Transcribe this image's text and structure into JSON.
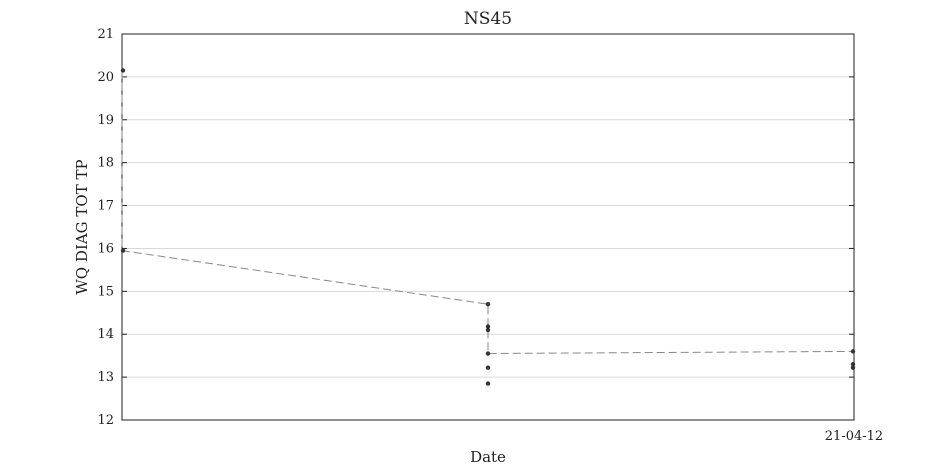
{
  "chart_data": {
    "type": "scatter",
    "title": "NS45",
    "xlabel": "Date",
    "ylabel": "WQ DIAG TOT TP",
    "ylim": [
      12,
      21
    ],
    "yticks": [
      12,
      13,
      14,
      15,
      16,
      17,
      18,
      19,
      20,
      21
    ],
    "x_tick_labels": [
      {
        "label": "21-04-12",
        "x": 2.0
      }
    ],
    "xlim": [
      0,
      2.0
    ],
    "grid": true,
    "legend": "none",
    "line_color": "#888888",
    "point_color": "#333333",
    "line": {
      "x": [
        0.0,
        0.0,
        1.0,
        1.0,
        2.0
      ],
      "y": [
        20.15,
        15.95,
        14.7,
        13.55,
        13.6
      ]
    },
    "points": {
      "x": [
        0.0,
        0.0,
        1.0,
        1.0,
        1.0,
        1.0,
        1.0,
        1.0,
        2.0,
        2.0,
        2.0
      ],
      "y": [
        20.15,
        15.95,
        14.7,
        14.18,
        14.1,
        13.55,
        13.22,
        12.85,
        13.6,
        13.3,
        13.22
      ]
    }
  }
}
